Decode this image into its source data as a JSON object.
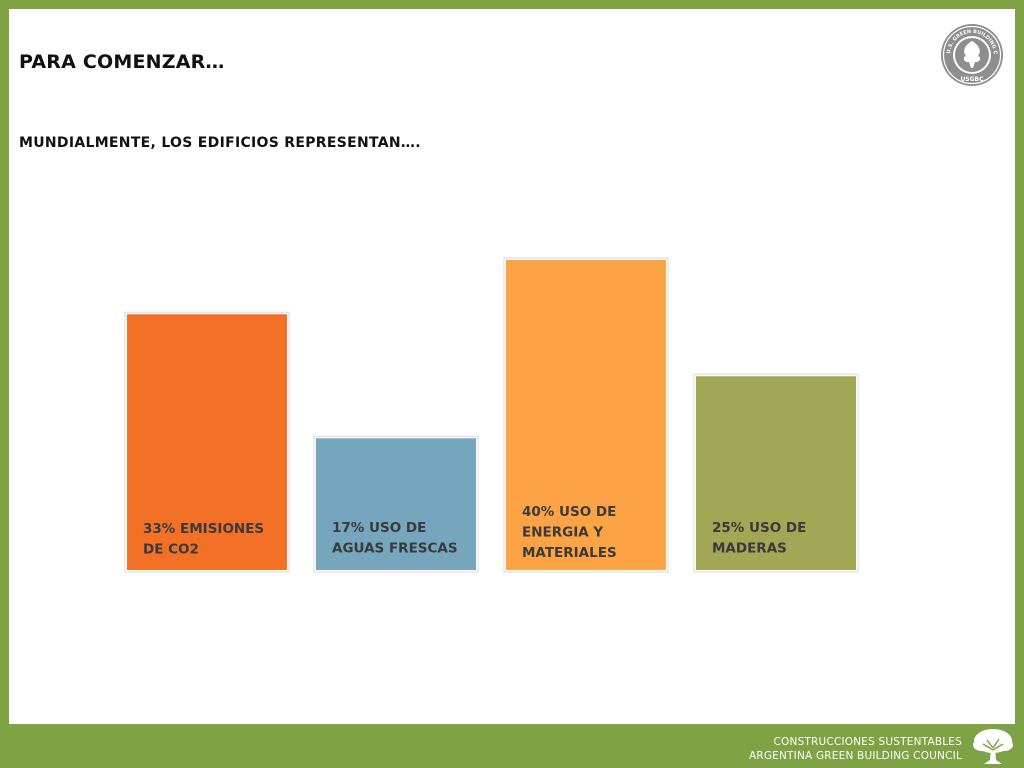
{
  "slide": {
    "title": "PARA COMENZAR…",
    "subtitle": "MUNDIALMENTE, LOS EDIFICIOS REPRESENTAN…."
  },
  "logo": {
    "icon": "usgbc-seal-icon",
    "ring_text": "U.S. GREEN BUILDING COUNCIL",
    "wordmark": "USGBC"
  },
  "footer": {
    "line1": "CONSTRUCCIONES SUSTENTABLES",
    "line2": "ARGENTINA GREEN BUILDING COUNCIL",
    "icon": "tree-icon"
  },
  "colors": {
    "frame": "#7fa244",
    "co2": "#f37027",
    "water": "#76a5be",
    "energy": "#fba345",
    "wood": "#a2a755"
  },
  "chart_data": {
    "type": "bar",
    "title": "",
    "xlabel": "",
    "ylabel": "",
    "ylim": [
      0,
      40
    ],
    "grid": false,
    "categories": [
      "33% EMISIONES DE CO2",
      "17% USO DE AGUAS FRESCAS",
      "40% USO DE ENERGIA Y MATERIALES",
      "25% USO DE MADERAS"
    ],
    "values": [
      33,
      17,
      40,
      25
    ],
    "label_lines": [
      [
        "33% EMISIONES",
        "DE CO2"
      ],
      [
        "17% USO DE",
        "AGUAS FRESCAS"
      ],
      [
        "40% USO DE",
        "ENERGIA Y",
        "MATERIALES"
      ],
      [
        "25% USO DE",
        "MADERAS"
      ]
    ],
    "bar_colors": [
      "#f37027",
      "#76a5be",
      "#fba345",
      "#a2a755"
    ]
  }
}
